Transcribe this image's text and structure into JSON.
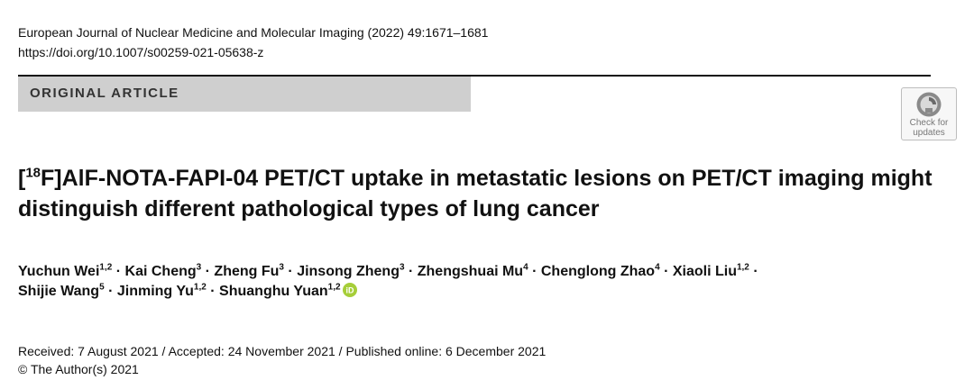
{
  "header": {
    "journal": "European Journal of Nuclear Medicine and Molecular Imaging (2022) 49:1671–1681",
    "doi": "https://doi.org/10.1007/s00259-021-05638-z"
  },
  "banner": {
    "label": "ORIGINAL ARTICLE"
  },
  "badge": {
    "line1": "Check for",
    "line2": "updates",
    "icon": "check-for-updates-icon"
  },
  "title": {
    "prefix": "[",
    "isotope": "18",
    "text": "F]AlF-NOTA-FAPI-04 PET/CT uptake in metastatic lesions on PET/CT imaging might distinguish different pathological types of lung cancer"
  },
  "authors": [
    {
      "name": "Yuchun Wei",
      "aff": "1,2"
    },
    {
      "name": "Kai Cheng",
      "aff": "3"
    },
    {
      "name": "Zheng Fu",
      "aff": "3"
    },
    {
      "name": "Jinsong Zheng",
      "aff": "3"
    },
    {
      "name": "Zhengshuai Mu",
      "aff": "4"
    },
    {
      "name": "Chenglong Zhao",
      "aff": "4"
    },
    {
      "name": "Xiaoli Liu",
      "aff": "1,2"
    },
    {
      "name": "Shijie Wang",
      "aff": "5"
    },
    {
      "name": "Jinming Yu",
      "aff": "1,2"
    },
    {
      "name": "Shuanghu Yuan",
      "aff": "1,2"
    }
  ],
  "separator": " · ",
  "orcid": {
    "icon": "orcid-icon",
    "label": "iD",
    "color": "#a6ce39"
  },
  "dates": "Received: 7 August 2021 / Accepted: 24 November 2021 / Published online: 6 December 2021",
  "copyright": "© The Author(s) 2021"
}
